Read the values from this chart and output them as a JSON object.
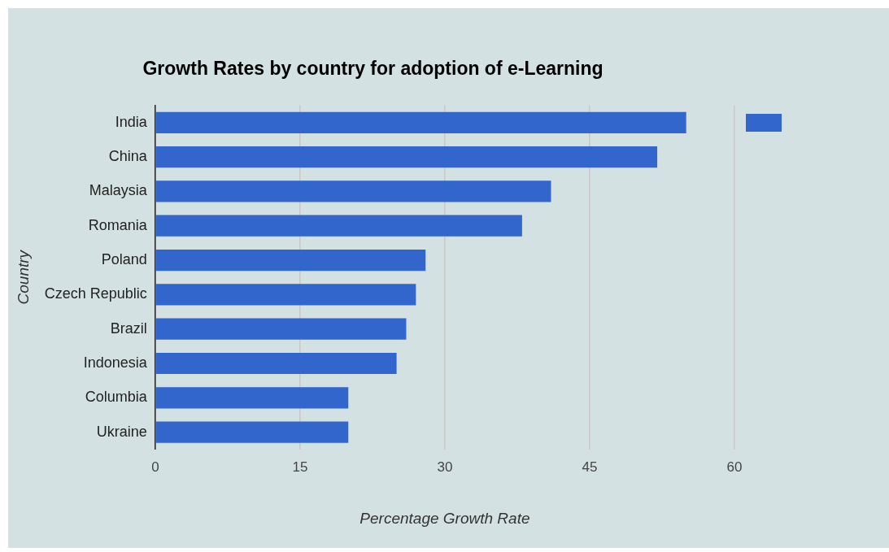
{
  "chart_data": {
    "type": "bar",
    "orientation": "horizontal",
    "title": "Growth Rates by country for adoption of e-Learning",
    "xlabel": "Percentage Growth Rate",
    "ylabel": "Country",
    "categories": [
      "India",
      "China",
      "Malaysia",
      "Romania",
      "Poland",
      "Czech Republic",
      "Brazil",
      "Indonesia",
      "Columbia",
      "Ukraine"
    ],
    "series": [
      {
        "color": "#3366cc",
        "values": [
          55,
          52,
          41,
          38,
          28,
          27,
          26,
          25,
          20,
          20
        ]
      }
    ],
    "xlim": [
      0,
      60
    ],
    "xticks": [
      0,
      15,
      30,
      45,
      60
    ],
    "grid": "x"
  }
}
